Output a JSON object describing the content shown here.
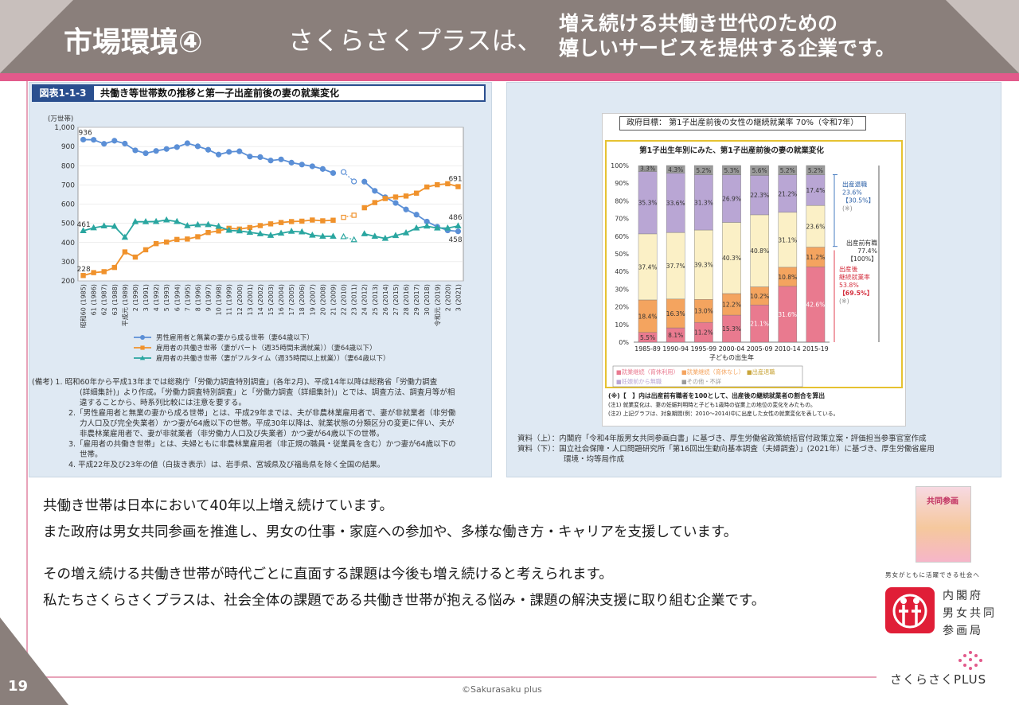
{
  "header": {
    "section_title": "市場環境④",
    "tagline_main": "さくらさくプラスは、",
    "tagline_sub": [
      "増え続ける共働き世代のための",
      "嬉しいサービスを提供する企業です。"
    ]
  },
  "left_figure": {
    "number": "図表1-1-3",
    "title": "共働き等世帯数の推移と第一子出産前後の妻の就業変化",
    "notes": [
      "(備考) 1.  昭和60年から平成13年までは総務庁「労働力調査特別調査」(各年2月)、平成14年以降は総務省「労働力調査",
      "(詳細集計)」より作成。「労働力調査特別調査」と「労働力調査（詳細集計)」とでは、調査方法、調査月等が相",
      "違することから、時系列比較には注意を要する。",
      "2.「男性雇用者と無業の妻から成る世帯」とは、平成29年までは、夫が非農林業雇用者で、妻が非就業者（非労働",
      "力人口及び完全失業者）かつ妻が64歳以下の世帯。平成30年以降は、就業状態の分類区分の変更に伴い、夫が",
      "非農林業雇用者で、妻が非就業者（非労働力人口及び失業者）かつ妻が64歳以下の世帯。",
      "3.「雇用者の共働き世帯」とは、夫婦ともに非農林業雇用者（非正規の職員・従業員を含む）かつ妻が64歳以下の",
      "世帯。",
      "4.  平成22年及び23年の値（白抜き表示）は、岩手県、宮城県及び福島県を除く全国の結果。"
    ]
  },
  "chart_data": [
    {
      "type": "line",
      "title": "共働き等世帯数の推移",
      "ylabel": "(万世帯)",
      "ylim": [
        200,
        1000
      ],
      "yticks": [
        "1,000",
        "900",
        "800",
        "700",
        "600",
        "500",
        "400",
        "300",
        "200"
      ],
      "x": [
        "昭和60 (1985)",
        "61 (1986)",
        "62 (1987)",
        "63 (1988)",
        "平成元 (1989)",
        "2 (1990)",
        "3 (1991)",
        "4 (1992)",
        "5 (1993)",
        "6 (1994)",
        "7 (1995)",
        "8 (1996)",
        "9 (1997)",
        "10 (1998)",
        "11 (1999)",
        "12 (2000)",
        "13 (2001)",
        "14 (2002)",
        "15 (2003)",
        "16 (2004)",
        "17 (2005)",
        "18 (2006)",
        "19 (2007)",
        "20 (2008)",
        "21 (2009)",
        "22 (2010)",
        "23 (2011)",
        "24 (2012)",
        "25 (2013)",
        "26 (2014)",
        "27 (2015)",
        "28 (2016)",
        "29 (2017)",
        "30 (2018)",
        "令和元 (2019)",
        "2 (2020)",
        "3 (2021)"
      ],
      "series": [
        {
          "name": "男性雇用者と無業の妻から成る世帯（妻64歳以下）",
          "color": "#5b8fd6",
          "values": [
            936,
            935,
            914,
            930,
            915,
            880,
            865,
            877,
            887,
            897,
            917,
            901,
            883,
            858,
            872,
            875,
            848,
            845,
            827,
            833,
            816,
            806,
            797,
            783,
            762,
            767,
            718,
            717,
            669,
            636,
            606,
            572,
            545,
            509,
            482,
            463,
            458
          ]
        },
        {
          "name": "雇用者の共働き世帯（妻がパート（週35時間未満就業））（妻64歳以下）",
          "color": "#f0922c",
          "values": [
            228,
            243,
            248,
            270,
            351,
            324,
            362,
            394,
            402,
            416,
            418,
            430,
            452,
            460,
            474,
            470,
            478,
            488,
            497,
            504,
            509,
            511,
            517,
            513,
            516,
            531,
            542,
            581,
            608,
            629,
            637,
            642,
            657,
            689,
            701,
            706,
            691
          ]
        },
        {
          "name": "雇用者の共働き世帯（妻がフルタイム（週35時間以上就業））（妻64歳以下）",
          "color": "#2aa6a0",
          "values": [
            461,
            476,
            486,
            484,
            427,
            508,
            508,
            509,
            517,
            509,
            487,
            492,
            493,
            484,
            463,
            460,
            453,
            445,
            437,
            448,
            458,
            455,
            438,
            432,
            432,
            430,
            414,
            445,
            432,
            421,
            436,
            450,
            475,
            485,
            475,
            475,
            486
          ]
        }
      ],
      "annotations": [
        "936",
        "461",
        "228",
        "691",
        "486",
        "458"
      ]
    },
    {
      "type": "bar",
      "title": "第1子出生年別にみた、第1子出産前後の妻の就業変化",
      "goal": "政府目標：  第1子出産前後の女性の継続就業率  70%（令和7年）",
      "xlabel": "子どもの出生年",
      "categories": [
        "1985-89",
        "1990-94",
        "1995-99",
        "2000-04",
        "2005-09",
        "2010-14",
        "2015-19"
      ],
      "yticks": [
        "100%",
        "90%",
        "80%",
        "70%",
        "60%",
        "50%",
        "40%",
        "30%",
        "20%",
        "10%",
        "0%"
      ],
      "series": [
        {
          "name": "就業継続（育休利用）",
          "color": "#e97a8f",
          "values": [
            5.5,
            8.1,
            11.2,
            15.3,
            21.1,
            31.6,
            42.6
          ]
        },
        {
          "name": "就業継続（育休なし）",
          "color": "#f4a45f",
          "values": [
            18.4,
            16.3,
            13.0,
            12.2,
            10.2,
            10.8,
            11.2
          ]
        },
        {
          "name": "出産退職",
          "color": "#fbf0c6",
          "values": [
            37.4,
            37.7,
            39.3,
            40.3,
            40.8,
            31.1,
            23.6
          ]
        },
        {
          "name": "妊娠前から無職",
          "color": "#b9a6d4",
          "values": [
            35.3,
            33.6,
            31.3,
            26.9,
            22.3,
            21.2,
            17.4
          ]
        },
        {
          "name": "その他・不詳",
          "color": "#9a9a9a",
          "values": [
            3.3,
            4.3,
            5.2,
            5.3,
            5.6,
            5.2,
            5.2
          ]
        }
      ],
      "legend": [
        "■就業継続（育休利用）",
        "■就業継続（育休なし）",
        "■出産退職",
        "■妊娠前から無職",
        "■その他・不詳"
      ],
      "side_annotations": {
        "left_job": [
          "出産退職",
          "23.6%",
          "【30.5%】",
          "(※)"
        ],
        "had_job": [
          "出産前有職",
          "77.4%",
          "【100%】"
        ],
        "continue": [
          "出産後",
          "継続就業率",
          "53.8%",
          "【69.5%】",
          "(※)"
        ]
      },
      "notes": [
        "(※)【　】内は出産前有職者を100として、出産後の継続就業者の割合を算出",
        "(注1) 就業変化は、妻の妊娠判明時と子ども1歳時の従業上の地位の変化をみたもの。",
        "(注2) 上記グラフは、対象期間(例：2010～2014)中に出産した女性の就業変化を表している。"
      ]
    }
  ],
  "right_figure": {
    "sources": [
      "資料（上）：内閣府「令和4年版男女共同参画白書」に基づき、厚生労働省政策統括官付政策立案・評価担当参事官室作成",
      "資料（下）：国立社会保障・人口問題研究所「第16回出生動向基本調査（夫婦調査）」(2021年）に基づき、厚生労働省雇用",
      "環境・均等局作成"
    ]
  },
  "body": {
    "lines": [
      "共働き世帯は日本において40年以上増え続けています。",
      "また政府は男女共同参画を推進し、男女の仕事・家庭への参加や、多様な働き方・キャリアを支援しています。",
      "その増え続ける共働き世帯が時代ごとに直面する課題は今後も増え続けると考えられます。",
      "私たちさくらさくプラスは、社会全体の課題である共働き世帯が抱える悩み・課題の解決支援に取り組む企業です。"
    ]
  },
  "sidebar": {
    "book_title": "共同参画",
    "gov_caption": "男女がともに活躍できる社会へ",
    "gov_name": [
      "内閣府",
      "男女共同",
      "参画局"
    ]
  },
  "footer": {
    "page_number": "19",
    "copyright": "©Sakurasaku plus",
    "brand": "さくらさくPLUS"
  },
  "colors": {
    "header": "#8a7f7b",
    "accent_pink": "#e25a8b",
    "panel": "#dfe9f3",
    "navy": "#2a4f8f"
  }
}
